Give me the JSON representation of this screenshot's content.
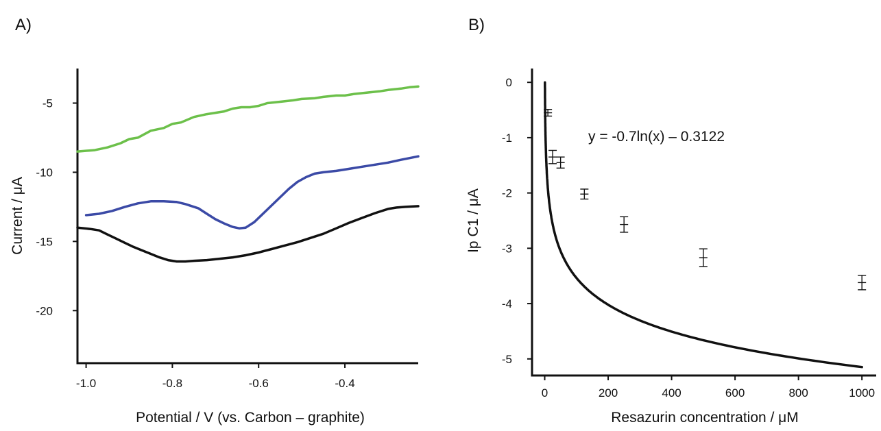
{
  "chart_data": [
    {
      "type": "line",
      "panel_label": "A)",
      "title": "",
      "xlabel": "Potential / V (vs. Carbon – graphite)",
      "ylabel": "Current / μA",
      "xlim": [
        -1.02,
        -0.23
      ],
      "ylim": [
        -23.8,
        -2.5
      ],
      "xticks": [
        -1.0,
        -0.8,
        -0.6,
        -0.4
      ],
      "xtick_labels": [
        "-1.0",
        "-0.8",
        "-0.6",
        "-0.4"
      ],
      "yticks": [
        -5,
        -10,
        -15,
        -20
      ],
      "ytick_labels": [
        "-5",
        "-10",
        "-15",
        "-20"
      ],
      "grid": false,
      "legend": "none",
      "series": [
        {
          "color": "#6cc04a",
          "x": [
            -1.02,
            -0.98,
            -0.95,
            -0.92,
            -0.9,
            -0.88,
            -0.85,
            -0.82,
            -0.8,
            -0.78,
            -0.75,
            -0.72,
            -0.7,
            -0.68,
            -0.66,
            -0.64,
            -0.62,
            -0.6,
            -0.58,
            -0.55,
            -0.52,
            -0.5,
            -0.47,
            -0.45,
            -0.42,
            -0.4,
            -0.38,
            -0.35,
            -0.32,
            -0.3,
            -0.27,
            -0.25,
            -0.23
          ],
          "y": [
            -8.5,
            -8.4,
            -8.2,
            -7.9,
            -7.6,
            -7.5,
            -7.0,
            -6.8,
            -6.5,
            -6.4,
            -6.0,
            -5.8,
            -5.7,
            -5.6,
            -5.4,
            -5.3,
            -5.3,
            -5.2,
            -5.0,
            -4.9,
            -4.8,
            -4.7,
            -4.65,
            -4.55,
            -4.45,
            -4.45,
            -4.35,
            -4.25,
            -4.15,
            -4.05,
            -3.95,
            -3.85,
            -3.8
          ]
        },
        {
          "color": "#3b4aa6",
          "x": [
            -1.0,
            -0.97,
            -0.94,
            -0.91,
            -0.88,
            -0.85,
            -0.82,
            -0.79,
            -0.77,
            -0.74,
            -0.72,
            -0.7,
            -0.68,
            -0.66,
            -0.645,
            -0.63,
            -0.61,
            -0.59,
            -0.57,
            -0.55,
            -0.53,
            -0.51,
            -0.49,
            -0.47,
            -0.45,
            -0.42,
            -0.39,
            -0.36,
            -0.33,
            -0.3,
            -0.27,
            -0.23
          ],
          "y": [
            -13.1,
            -13.0,
            -12.8,
            -12.5,
            -12.25,
            -12.1,
            -12.1,
            -12.15,
            -12.3,
            -12.6,
            -13.0,
            -13.4,
            -13.7,
            -13.95,
            -14.05,
            -14.0,
            -13.6,
            -13.0,
            -12.4,
            -11.8,
            -11.2,
            -10.7,
            -10.35,
            -10.1,
            -10.0,
            -9.9,
            -9.75,
            -9.6,
            -9.45,
            -9.3,
            -9.1,
            -8.85
          ]
        },
        {
          "color": "#111111",
          "x": [
            -1.02,
            -0.99,
            -0.97,
            -0.95,
            -0.93,
            -0.91,
            -0.89,
            -0.87,
            -0.85,
            -0.83,
            -0.81,
            -0.79,
            -0.77,
            -0.75,
            -0.72,
            -0.69,
            -0.66,
            -0.63,
            -0.6,
            -0.57,
            -0.54,
            -0.51,
            -0.48,
            -0.45,
            -0.42,
            -0.39,
            -0.36,
            -0.33,
            -0.3,
            -0.28,
            -0.26,
            -0.23
          ],
          "y": [
            -14.0,
            -14.1,
            -14.2,
            -14.5,
            -14.8,
            -15.1,
            -15.4,
            -15.65,
            -15.9,
            -16.15,
            -16.35,
            -16.45,
            -16.45,
            -16.4,
            -16.35,
            -16.25,
            -16.15,
            -16.0,
            -15.8,
            -15.55,
            -15.3,
            -15.05,
            -14.75,
            -14.45,
            -14.05,
            -13.65,
            -13.3,
            -12.95,
            -12.65,
            -12.55,
            -12.5,
            -12.45
          ]
        }
      ]
    },
    {
      "type": "scatter",
      "panel_label": "B)",
      "title": "",
      "xlabel": "Resazurin concentration / μM",
      "ylabel": "Ip C1 / μA",
      "xlim": [
        -40,
        1045
      ],
      "ylim": [
        -5.3,
        0.25
      ],
      "xticks": [
        0,
        200,
        400,
        600,
        800,
        1000
      ],
      "xtick_labels": [
        "0",
        "200",
        "400",
        "600",
        "800",
        "1000"
      ],
      "yticks": [
        0,
        -1,
        -2,
        -3,
        -4,
        -5
      ],
      "ytick_labels": [
        "0",
        "-1",
        "-2",
        "-3",
        "-4",
        "-5"
      ],
      "grid": false,
      "legend": "none",
      "annotation": "y = -0.7ln(x) – 0.3122",
      "fit": {
        "model": "y = -0.7*ln(x) - 0.3122",
        "x_min": 0.64,
        "x_max": 1000
      },
      "points": {
        "x": [
          10,
          25,
          50,
          125,
          250,
          500,
          1000
        ],
        "y": [
          -0.55,
          -1.35,
          -1.45,
          -2.02,
          -2.57,
          -3.17,
          -3.62
        ],
        "err": [
          0.06,
          0.12,
          0.1,
          0.09,
          0.14,
          0.16,
          0.13
        ]
      }
    }
  ]
}
